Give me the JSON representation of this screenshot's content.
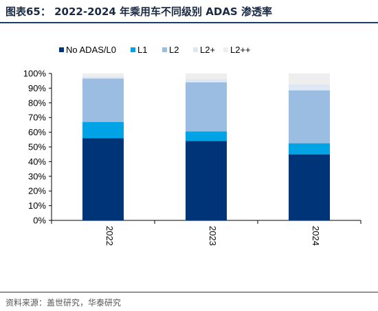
{
  "header": {
    "title": "图表65： 2022-2024 年乘用车不同级别 ADAS 渗透率"
  },
  "footer": {
    "source": "资料来源：盖世研究，华泰研究"
  },
  "chart_data": {
    "type": "bar",
    "stacked": true,
    "categories": [
      "2022",
      "2023",
      "2024"
    ],
    "series": [
      {
        "name": "No ADAS/L0",
        "color": "#003478",
        "values": [
          56,
          54,
          45
        ]
      },
      {
        "name": "L1",
        "color": "#00a3e6",
        "values": [
          11,
          6.5,
          7.5
        ]
      },
      {
        "name": "L2",
        "color": "#9bbde2",
        "values": [
          29.5,
          33.5,
          36
        ]
      },
      {
        "name": "L2+",
        "color": "#dde8f4",
        "values": [
          1.5,
          2,
          4
        ]
      },
      {
        "name": "L2++",
        "color": "#eeeeee",
        "values": [
          2,
          4,
          7.5
        ]
      }
    ],
    "yticks": [
      "0%",
      "10%",
      "20%",
      "30%",
      "40%",
      "50%",
      "60%",
      "70%",
      "80%",
      "90%",
      "100%"
    ],
    "ylim": [
      0,
      100
    ],
    "legend_position": "top",
    "grid": false
  }
}
